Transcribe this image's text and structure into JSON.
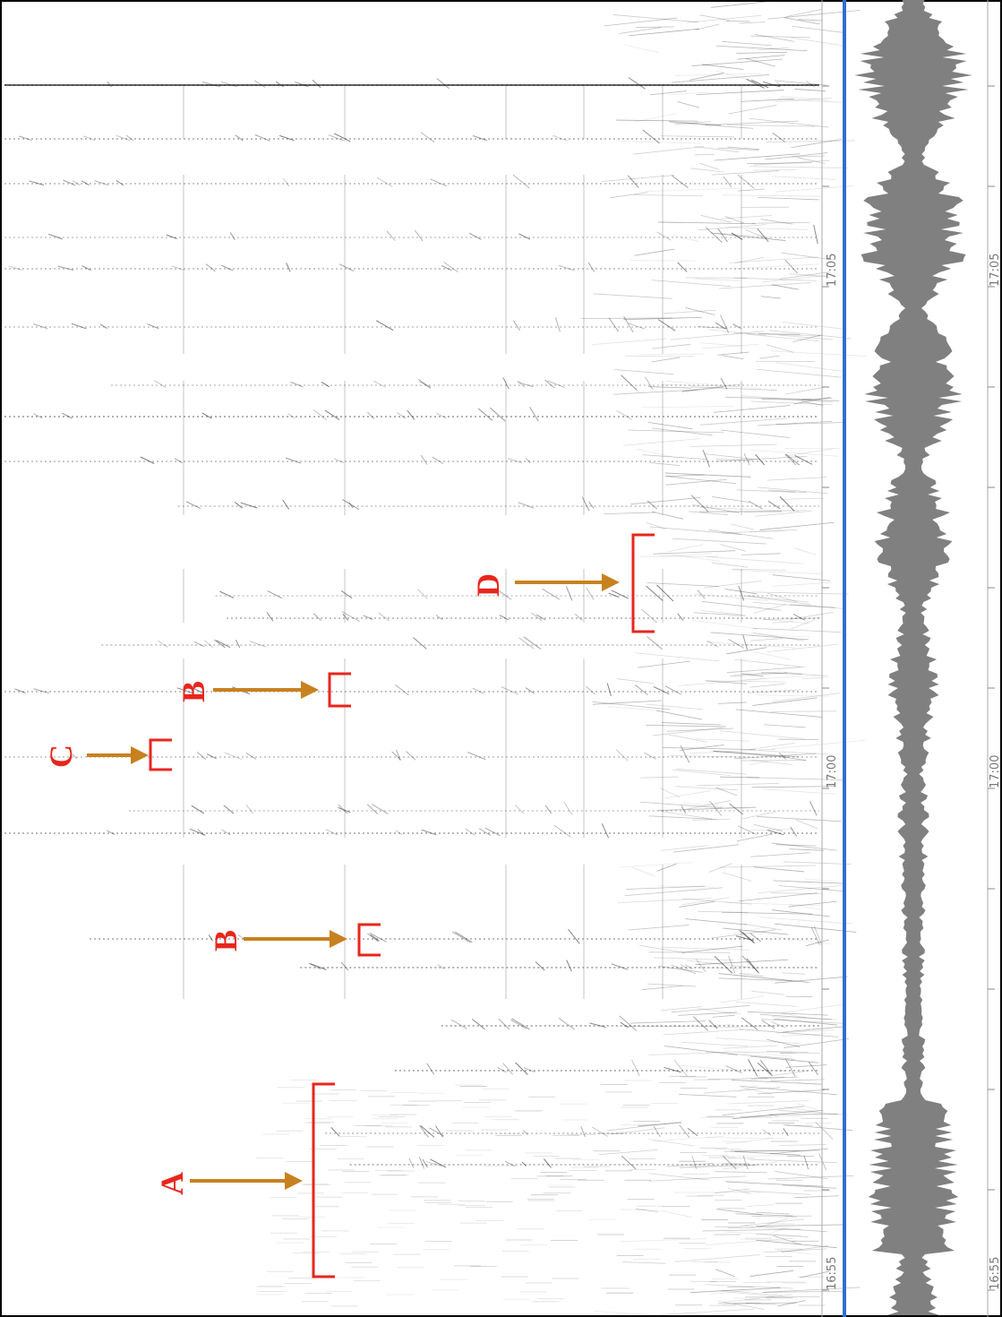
{
  "spectrogram": {
    "time_labels": [
      "16:55",
      "17:00",
      "17:05"
    ]
  },
  "waveform": {
    "time_labels": [
      "16:55",
      "17:00",
      "17:05"
    ]
  },
  "annotations": [
    {
      "label": "A"
    },
    {
      "label": "B"
    },
    {
      "label": "C"
    },
    {
      "label": "B"
    },
    {
      "label": "D"
    }
  ]
}
